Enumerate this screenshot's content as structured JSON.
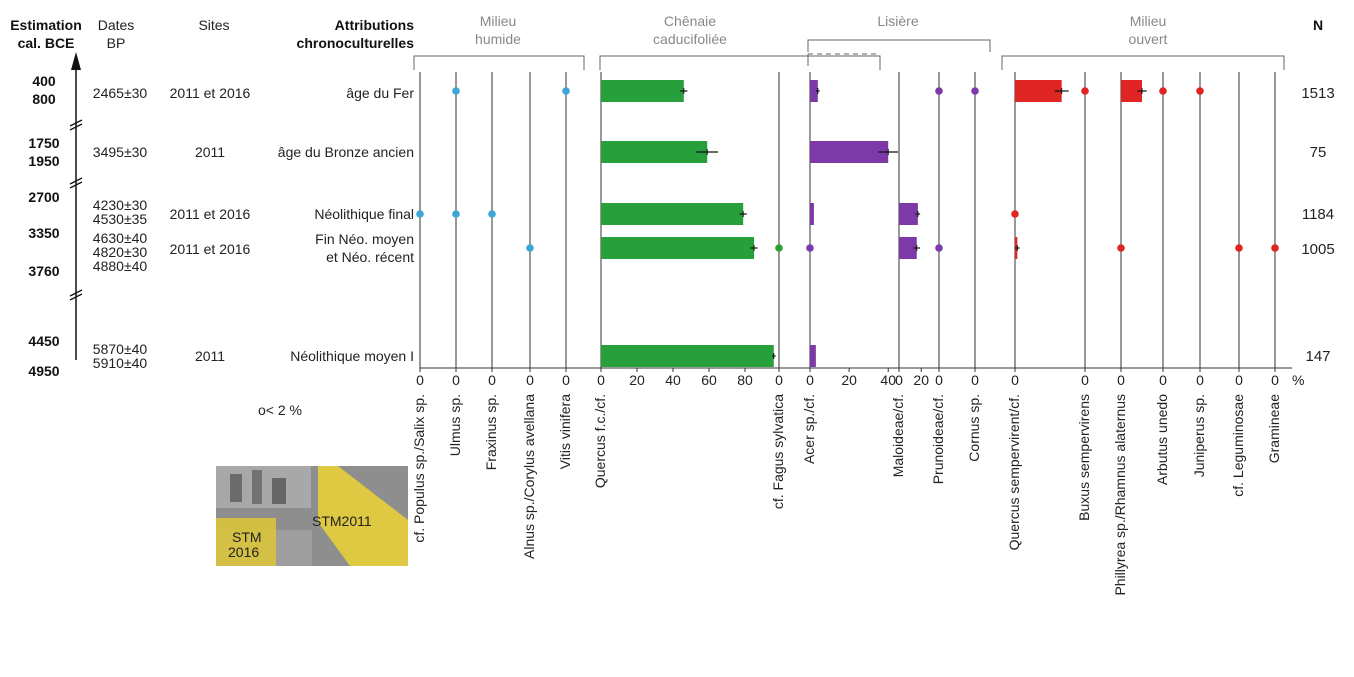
{
  "headers": {
    "estimation": [
      "Estimation",
      "cal. BCE"
    ],
    "dates": [
      "Dates",
      "BP"
    ],
    "sites": "Sites",
    "attributions": [
      "Attributions",
      "chronoculturelles"
    ],
    "n": "N"
  },
  "groups": [
    {
      "lines": [
        "Milieu",
        "humide"
      ]
    },
    {
      "lines": [
        "Chênaie",
        "caducifoliée"
      ]
    },
    {
      "lines": [
        "Lisière"
      ]
    },
    {
      "lines": [
        "Milieu",
        "ouvert"
      ]
    }
  ],
  "age_labels": [
    "400",
    "800",
    "1750",
    "1950",
    "2700",
    "3350",
    "3760",
    "4450",
    "4950"
  ],
  "rows": [
    {
      "dates": [
        "2465±30"
      ],
      "sites": "2011 et 2016",
      "attribution": [
        "âge du Fer"
      ],
      "n": "1513"
    },
    {
      "dates": [
        "3495±30"
      ],
      "sites": "2011",
      "attribution": [
        "âge du Bronze ancien"
      ],
      "n": "75"
    },
    {
      "dates": [
        "4230±30",
        "4530±35"
      ],
      "sites": "2011 et 2016",
      "attribution": [
        "Néolithique final"
      ],
      "n": "1184"
    },
    {
      "dates": [
        "4630±40",
        "4820±30",
        "4880±40"
      ],
      "sites": "2011 et 2016",
      "attribution": [
        "Fin Néo. moyen",
        "et Néo. récent"
      ],
      "n": "1005"
    },
    {
      "dates": [
        "5870±40",
        "5910±40"
      ],
      "sites": "2011",
      "attribution": [
        "Néolithique moyen I"
      ],
      "n": "147"
    }
  ],
  "legend_note": "o< 2 %",
  "photo": {
    "label_a": "STM2011",
    "label_b": [
      "STM",
      "2016"
    ]
  },
  "colors": {
    "humide": "#3aa7d8",
    "chenaie": "#27a03c",
    "lisiere": "#7b3aa7",
    "ouvert": "#e02424"
  },
  "chart_data": {
    "type": "bar",
    "title": "",
    "xlabel": "%",
    "ylabel": "",
    "grid": false,
    "categories": [
      "âge du Fer",
      "âge du Bronze ancien",
      "Néolithique final",
      "Fin Néo. moyen et Néo. récent",
      "Néolithique moyen I"
    ],
    "series": [
      {
        "name": "cf. Populus sp./Salix sp.",
        "group": "humide",
        "values": [
          0,
          0,
          0.4,
          0,
          0
        ],
        "marker": [
          false,
          false,
          true,
          false,
          false
        ]
      },
      {
        "name": "Ulmus sp.",
        "group": "humide",
        "values": [
          0.5,
          0,
          0.5,
          0,
          0
        ],
        "marker": [
          true,
          false,
          true,
          false,
          false
        ]
      },
      {
        "name": "Fraxinus sp.",
        "group": "humide",
        "values": [
          0,
          0,
          0.6,
          0,
          0
        ],
        "marker": [
          false,
          false,
          true,
          false,
          false
        ]
      },
      {
        "name": "Alnus sp./Corylus avellana",
        "group": "humide",
        "values": [
          0,
          0,
          0,
          0.5,
          0
        ],
        "marker": [
          false,
          false,
          false,
          true,
          false
        ]
      },
      {
        "name": "Vitis vinifera",
        "group": "humide",
        "values": [
          0.5,
          0,
          0,
          0,
          0
        ],
        "marker": [
          true,
          false,
          false,
          false,
          false
        ]
      },
      {
        "name": "Quercus f.c./cf.",
        "group": "chenaie",
        "values": [
          46,
          59,
          79,
          85,
          96
        ],
        "errors": [
          2,
          6,
          2,
          2,
          1
        ],
        "ticks": [
          0,
          20,
          40,
          60,
          80
        ],
        "axis_max": 100
      },
      {
        "name": "cf. Fagus sylvatica",
        "group": "chenaie",
        "values": [
          0,
          0,
          0,
          0.5,
          0
        ],
        "marker": [
          false,
          false,
          false,
          true,
          false
        ]
      },
      {
        "name": "Acer sp./cf.",
        "group": "lisiere",
        "values": [
          4,
          40,
          2,
          1,
          3
        ],
        "errors": [
          1,
          5,
          0,
          0,
          0
        ],
        "marker": [
          false,
          false,
          false,
          true,
          false
        ],
        "ticks": [
          0,
          20,
          40
        ],
        "axis_max": 45
      },
      {
        "name": "Maloideae/cf.",
        "group": "lisiere",
        "values": [
          0,
          0,
          17,
          16,
          0
        ],
        "errors": [
          0,
          0,
          2,
          3,
          0
        ],
        "ticks": [
          0,
          20
        ],
        "axis_max": 36
      },
      {
        "name": "Prunoideae/cf.",
        "group": "lisiere",
        "values": [
          0.5,
          0,
          0,
          0.5,
          0
        ],
        "marker": [
          true,
          false,
          false,
          true,
          false
        ]
      },
      {
        "name": "Cornus sp.",
        "group": "lisiere",
        "values": [
          0.5,
          0,
          0,
          0,
          0
        ],
        "marker": [
          true,
          false,
          false,
          false,
          false
        ]
      },
      {
        "name": "Quercus sempervirent/cf.",
        "group": "ouvert",
        "values": [
          20,
          0,
          0.5,
          1,
          0
        ],
        "errors": [
          3,
          0,
          0,
          1,
          0
        ],
        "marker": [
          false,
          false,
          true,
          false,
          false
        ],
        "ticks": [
          0
        ],
        "axis_max": 30
      },
      {
        "name": "Buxus sempervirens",
        "group": "ouvert",
        "values": [
          0.5,
          0,
          0,
          0,
          0
        ],
        "marker": [
          true,
          false,
          false,
          false,
          false
        ]
      },
      {
        "name": "Phillyrea sp./Rhamnus alaternus",
        "group": "ouvert",
        "values": [
          9,
          0,
          0,
          0.5,
          0
        ],
        "errors": [
          2,
          0,
          0,
          0,
          0
        ],
        "marker": [
          false,
          false,
          false,
          true,
          false
        ],
        "ticks": [
          0
        ],
        "axis_max": 18
      },
      {
        "name": "Arbutus unedo",
        "group": "ouvert",
        "values": [
          0.5,
          0,
          0,
          0,
          0
        ],
        "marker": [
          true,
          false,
          false,
          false,
          false
        ]
      },
      {
        "name": "Juniperus sp.",
        "group": "ouvert",
        "values": [
          0.5,
          0,
          0,
          0,
          0
        ],
        "marker": [
          true,
          false,
          false,
          false,
          false
        ]
      },
      {
        "name": "cf. Leguminosae",
        "group": "ouvert",
        "values": [
          0,
          0,
          0,
          0.5,
          0
        ],
        "marker": [
          false,
          false,
          false,
          true,
          false
        ]
      },
      {
        "name": "Gramineae",
        "group": "ouvert",
        "values": [
          0,
          0,
          0,
          0.5,
          0
        ],
        "marker": [
          false,
          false,
          false,
          true,
          false
        ]
      }
    ]
  }
}
